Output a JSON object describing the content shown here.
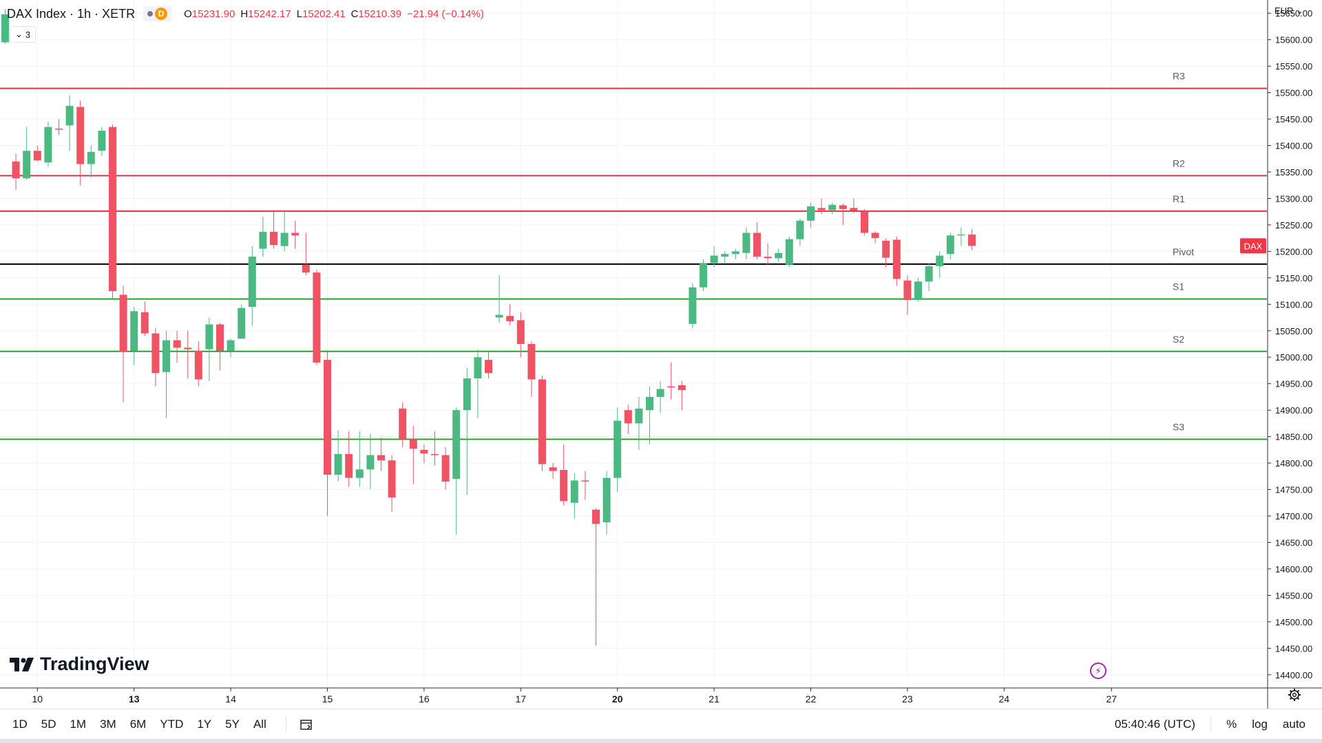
{
  "legend": {
    "symbol": "DAX Index · 1h · XETR",
    "flag_letter": "D",
    "open_label": "O",
    "open": "15231.90",
    "high_label": "H",
    "high": "15242.17",
    "low_label": "L",
    "low": "15202.41",
    "close_label": "C",
    "close": "15210.39",
    "change": "−21.94 (−0.14%)"
  },
  "indicator_toggle": {
    "count": "3"
  },
  "currency": "EUR",
  "brand": "TradingView",
  "price_tag": {
    "label": "DAX",
    "color": "#f23645"
  },
  "timeframes": [
    "1D",
    "5D",
    "1M",
    "3M",
    "6M",
    "YTD",
    "1Y",
    "5Y",
    "All"
  ],
  "clock": "05:40:46 (UTC)",
  "scale_options": {
    "percent": "%",
    "log": "log",
    "auto": "auto"
  },
  "colors": {
    "up": "#4cb882",
    "down": "#f05364",
    "resistance": "#e0313f",
    "support": "#27a22c",
    "pivot": "#000000",
    "grid": "#f0f3fa"
  },
  "chart_data": {
    "type": "candlestick",
    "title": "DAX Index · 1h · XETR",
    "ylim": [
      14375,
      15675
    ],
    "y_ticks": [
      "15650.00",
      "15600.00",
      "15550.00",
      "15500.00",
      "15450.00",
      "15400.00",
      "15350.00",
      "15300.00",
      "15250.00",
      "15200.00",
      "15150.00",
      "15100.00",
      "15050.00",
      "15000.00",
      "14950.00",
      "14900.00",
      "14850.00",
      "14800.00",
      "14750.00",
      "14700.00",
      "14650.00",
      "14600.00",
      "14550.00",
      "14500.00",
      "14450.00",
      "14400.00"
    ],
    "x_ticks": [
      {
        "label": "10",
        "bold": false,
        "index": 3
      },
      {
        "label": "13",
        "bold": true,
        "index": 12
      },
      {
        "label": "14",
        "bold": false,
        "index": 21
      },
      {
        "label": "15",
        "bold": false,
        "index": 30
      },
      {
        "label": "16",
        "bold": false,
        "index": 39
      },
      {
        "label": "17",
        "bold": false,
        "index": 48
      },
      {
        "label": "20",
        "bold": true,
        "index": 57
      },
      {
        "label": "21",
        "bold": false,
        "index": 66
      },
      {
        "label": "22",
        "bold": false,
        "index": 75
      },
      {
        "label": "23",
        "bold": false,
        "index": 84
      },
      {
        "label": "24",
        "bold": false,
        "index": 93
      },
      {
        "label": "27",
        "bold": false,
        "index": 103
      }
    ],
    "levels": [
      {
        "name": "R3",
        "value": 15508,
        "kind": "resistance"
      },
      {
        "name": "R2",
        "value": 15343,
        "kind": "resistance"
      },
      {
        "name": "R1",
        "value": 15276,
        "kind": "resistance"
      },
      {
        "name": "Pivot",
        "value": 15176,
        "kind": "pivot"
      },
      {
        "name": "S1",
        "value": 15110,
        "kind": "support"
      },
      {
        "name": "S2",
        "value": 15011,
        "kind": "support"
      },
      {
        "name": "S3",
        "value": 14845,
        "kind": "support"
      }
    ],
    "candles": [
      {
        "o": 15595,
        "h": 15658,
        "l": 15592,
        "c": 15648
      },
      {
        "o": 15370,
        "h": 15385,
        "l": 15316,
        "c": 15338
      },
      {
        "o": 15338,
        "h": 15435,
        "l": 15335,
        "c": 15390
      },
      {
        "o": 15390,
        "h": 15400,
        "l": 15370,
        "c": 15372
      },
      {
        "o": 15368,
        "h": 15445,
        "l": 15360,
        "c": 15435
      },
      {
        "o": 15432,
        "h": 15450,
        "l": 15420,
        "c": 15430
      },
      {
        "o": 15438,
        "h": 15495,
        "l": 15390,
        "c": 15475
      },
      {
        "o": 15473,
        "h": 15485,
        "l": 15325,
        "c": 15365
      },
      {
        "o": 15365,
        "h": 15400,
        "l": 15340,
        "c": 15388
      },
      {
        "o": 15390,
        "h": 15435,
        "l": 15380,
        "c": 15428
      },
      {
        "o": 15435,
        "h": 15440,
        "l": 15110,
        "c": 15125
      },
      {
        "o": 15118,
        "h": 15135,
        "l": 14915,
        "c": 15010
      },
      {
        "o": 15012,
        "h": 15095,
        "l": 14985,
        "c": 15087
      },
      {
        "o": 15085,
        "h": 15105,
        "l": 15040,
        "c": 15045
      },
      {
        "o": 15045,
        "h": 15055,
        "l": 14945,
        "c": 14970
      },
      {
        "o": 14972,
        "h": 15050,
        "l": 14885,
        "c": 15032
      },
      {
        "o": 15032,
        "h": 15050,
        "l": 14990,
        "c": 15018
      },
      {
        "o": 15018,
        "h": 15050,
        "l": 14960,
        "c": 15015
      },
      {
        "o": 15012,
        "h": 15030,
        "l": 14945,
        "c": 14958
      },
      {
        "o": 15015,
        "h": 15075,
        "l": 14955,
        "c": 15062
      },
      {
        "o": 15062,
        "h": 15065,
        "l": 14975,
        "c": 15012
      },
      {
        "o": 15012,
        "h": 15035,
        "l": 15000,
        "c": 15032
      },
      {
        "o": 15035,
        "h": 15100,
        "l": 15035,
        "c": 15093
      },
      {
        "o": 15095,
        "h": 15210,
        "l": 15060,
        "c": 15190
      },
      {
        "o": 15205,
        "h": 15265,
        "l": 15190,
        "c": 15237
      },
      {
        "o": 15237,
        "h": 15275,
        "l": 15205,
        "c": 15212
      },
      {
        "o": 15210,
        "h": 15275,
        "l": 15200,
        "c": 15235
      },
      {
        "o": 15235,
        "h": 15258,
        "l": 15205,
        "c": 15230
      },
      {
        "o": 15175,
        "h": 15235,
        "l": 15155,
        "c": 15160
      },
      {
        "o": 15160,
        "h": 15165,
        "l": 14985,
        "c": 14990
      },
      {
        "o": 14995,
        "h": 15010,
        "l": 14700,
        "c": 14778
      },
      {
        "o": 14778,
        "h": 14862,
        "l": 14765,
        "c": 14817
      },
      {
        "o": 14817,
        "h": 14860,
        "l": 14755,
        "c": 14772
      },
      {
        "o": 14772,
        "h": 14860,
        "l": 14755,
        "c": 14788
      },
      {
        "o": 14788,
        "h": 14855,
        "l": 14750,
        "c": 14815
      },
      {
        "o": 14815,
        "h": 14848,
        "l": 14785,
        "c": 14805
      },
      {
        "o": 14805,
        "h": 14815,
        "l": 14708,
        "c": 14735
      },
      {
        "o": 14903,
        "h": 14915,
        "l": 14830,
        "c": 14845
      },
      {
        "o": 14845,
        "h": 14870,
        "l": 14760,
        "c": 14827
      },
      {
        "o": 14825,
        "h": 14835,
        "l": 14800,
        "c": 14818
      },
      {
        "o": 14817,
        "h": 14860,
        "l": 14795,
        "c": 14815
      },
      {
        "o": 14815,
        "h": 14830,
        "l": 14750,
        "c": 14765
      },
      {
        "o": 14770,
        "h": 14905,
        "l": 14665,
        "c": 14900
      },
      {
        "o": 14900,
        "h": 14980,
        "l": 14740,
        "c": 14960
      },
      {
        "o": 14960,
        "h": 15015,
        "l": 14885,
        "c": 15000
      },
      {
        "o": 14995,
        "h": 15010,
        "l": 14960,
        "c": 14970
      },
      {
        "o": 15075,
        "h": 15155,
        "l": 15065,
        "c": 15080
      },
      {
        "o": 15078,
        "h": 15100,
        "l": 15060,
        "c": 15068
      },
      {
        "o": 15070,
        "h": 15085,
        "l": 15000,
        "c": 15025
      },
      {
        "o": 15025,
        "h": 15030,
        "l": 14925,
        "c": 14958
      },
      {
        "o": 14958,
        "h": 14965,
        "l": 14785,
        "c": 14798
      },
      {
        "o": 14792,
        "h": 14800,
        "l": 14770,
        "c": 14785
      },
      {
        "o": 14787,
        "h": 14835,
        "l": 14720,
        "c": 14728
      },
      {
        "o": 14725,
        "h": 14780,
        "l": 14695,
        "c": 14767
      },
      {
        "o": 14767,
        "h": 14785,
        "l": 14730,
        "c": 14765
      },
      {
        "o": 14712,
        "h": 14715,
        "l": 14455,
        "c": 14685
      },
      {
        "o": 14688,
        "h": 14785,
        "l": 14665,
        "c": 14772
      },
      {
        "o": 14772,
        "h": 14905,
        "l": 14745,
        "c": 14880
      },
      {
        "o": 14900,
        "h": 14910,
        "l": 14855,
        "c": 14875
      },
      {
        "o": 14875,
        "h": 14925,
        "l": 14825,
        "c": 14903
      },
      {
        "o": 14900,
        "h": 14945,
        "l": 14835,
        "c": 14925
      },
      {
        "o": 14925,
        "h": 14955,
        "l": 14895,
        "c": 14940
      },
      {
        "o": 14945,
        "h": 14990,
        "l": 14920,
        "c": 14943
      },
      {
        "o": 14947,
        "h": 14955,
        "l": 14900,
        "c": 14938
      },
      {
        "o": 15063,
        "h": 15140,
        "l": 15055,
        "c": 15132
      },
      {
        "o": 15132,
        "h": 15185,
        "l": 15125,
        "c": 15178
      },
      {
        "o": 15178,
        "h": 15210,
        "l": 15170,
        "c": 15192
      },
      {
        "o": 15190,
        "h": 15200,
        "l": 15178,
        "c": 15195
      },
      {
        "o": 15195,
        "h": 15205,
        "l": 15185,
        "c": 15200
      },
      {
        "o": 15197,
        "h": 15245,
        "l": 15185,
        "c": 15235
      },
      {
        "o": 15235,
        "h": 15255,
        "l": 15185,
        "c": 15190
      },
      {
        "o": 15190,
        "h": 15215,
        "l": 15175,
        "c": 15187
      },
      {
        "o": 15187,
        "h": 15205,
        "l": 15180,
        "c": 15197
      },
      {
        "o": 15175,
        "h": 15228,
        "l": 15170,
        "c": 15223
      },
      {
        "o": 15223,
        "h": 15262,
        "l": 15210,
        "c": 15258
      },
      {
        "o": 15258,
        "h": 15292,
        "l": 15245,
        "c": 15285
      },
      {
        "o": 15282,
        "h": 15300,
        "l": 15270,
        "c": 15278
      },
      {
        "o": 15278,
        "h": 15292,
        "l": 15270,
        "c": 15288
      },
      {
        "o": 15287,
        "h": 15290,
        "l": 15250,
        "c": 15280
      },
      {
        "o": 15282,
        "h": 15300,
        "l": 15272,
        "c": 15277
      },
      {
        "o": 15275,
        "h": 15280,
        "l": 15230,
        "c": 15235
      },
      {
        "o": 15235,
        "h": 15238,
        "l": 15215,
        "c": 15225
      },
      {
        "o": 15220,
        "h": 15225,
        "l": 15170,
        "c": 15188
      },
      {
        "o": 15222,
        "h": 15228,
        "l": 15135,
        "c": 15148
      },
      {
        "o": 15145,
        "h": 15155,
        "l": 15080,
        "c": 15108
      },
      {
        "o": 15108,
        "h": 15150,
        "l": 15105,
        "c": 15143
      },
      {
        "o": 15143,
        "h": 15178,
        "l": 15125,
        "c": 15172
      },
      {
        "o": 15172,
        "h": 15200,
        "l": 15150,
        "c": 15192
      },
      {
        "o": 15195,
        "h": 15235,
        "l": 15185,
        "c": 15230
      },
      {
        "o": 15230,
        "h": 15245,
        "l": 15210,
        "c": 15232
      },
      {
        "o": 15231.9,
        "h": 15242.17,
        "l": 15202.41,
        "c": 15210.39
      }
    ]
  }
}
